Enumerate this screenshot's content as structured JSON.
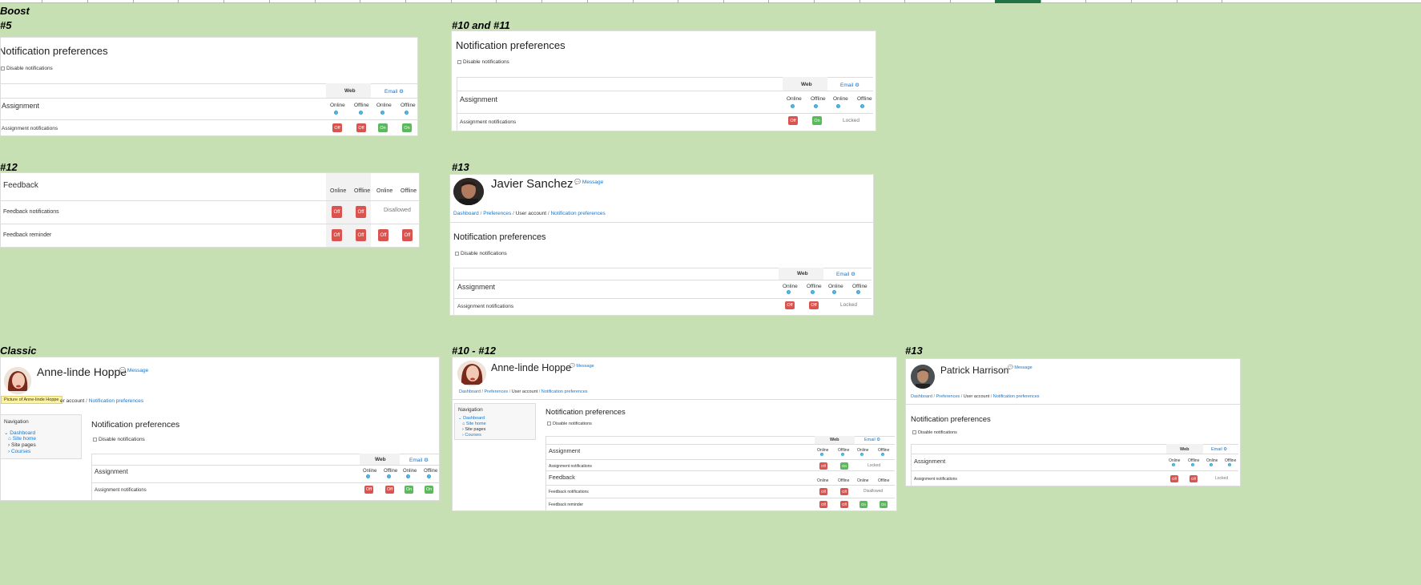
{
  "labels": {
    "boost": "Boost",
    "b5": "#5",
    "b1011": "#10 and #11",
    "b12": "#12",
    "b13": "#13",
    "classic": "Classic",
    "c1012": "#10 - #12",
    "c13": "#13"
  },
  "common": {
    "notif_prefs": "Notification preferences",
    "disable": "Disable notifications",
    "web": "Web",
    "email": "Email",
    "online": "Online",
    "offline": "Offline",
    "assignment": "Assignment",
    "assign_notif": "Assignment notifications",
    "feedback": "Feedback",
    "feedback_notif": "Feedback notifications",
    "feedback_rem": "Feedback reminder",
    "off": "Off",
    "on": "On",
    "locked": "Locked",
    "disallowed": "Disallowed",
    "message": "Message",
    "q": "?",
    "gear": "⚙"
  },
  "users": {
    "javier": "Javier Sanchez",
    "anne": "Anne-linde Hoppe",
    "patrick": "Patrick Harrison"
  },
  "breadcrumb": {
    "dashboard": "Dashboard",
    "preferences": "Preferences",
    "user_account": "User account",
    "notif": "Notification preferences",
    "sep": "/",
    "user_account_partial": "er account"
  },
  "nav": {
    "title": "Navigation",
    "dashboard": "Dashboard",
    "site_home": "Site home",
    "site_pages": "Site pages",
    "courses": "Courses"
  },
  "tooltip": "Picture of Anne-linde Hoppe",
  "colors": {
    "background": "#c6e0b4",
    "off": "#d9534f",
    "on": "#5cb85c",
    "link": "#1177d1",
    "help": "#36a2d6"
  },
  "icons": [
    "help-icon",
    "gear-icon",
    "message-icon",
    "checkbox-icon",
    "caret-icon",
    "home-icon"
  ]
}
